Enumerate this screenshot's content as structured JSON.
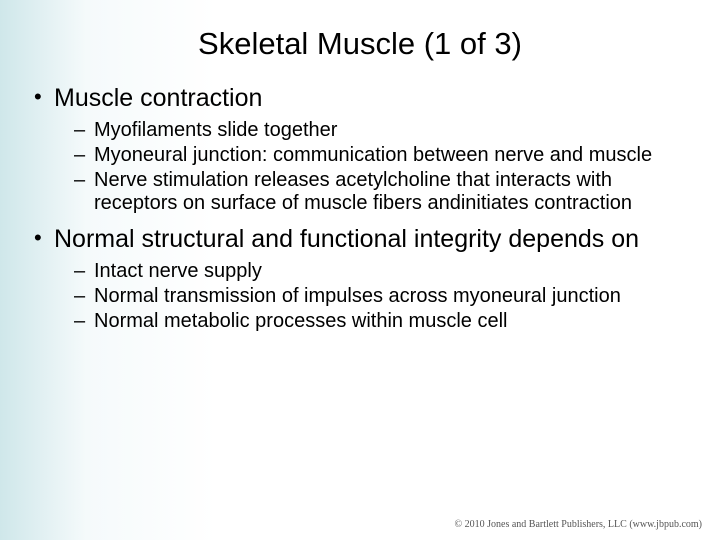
{
  "slide": {
    "title": "Skeletal Muscle (1 of 3)",
    "bullets": [
      {
        "text": "Muscle contraction",
        "sub": [
          "Myofilaments slide together",
          "Myoneural junction: communication between nerve and muscle",
          "Nerve stimulation releases acetylcholine that interacts with receptors on surface of muscle fibers andinitiates contraction"
        ]
      },
      {
        "text": "Normal structural and functional integrity depends on",
        "sub": [
          "Intact nerve supply",
          "Normal transmission of impulses across myoneural junction",
          "Normal metabolic processes within muscle cell"
        ]
      }
    ],
    "footer": "© 2010 Jones and Bartlett Publishers, LLC (www.jbpub.com)"
  },
  "style": {
    "background_gradient_from": "#cfe7ea",
    "background_gradient_to": "#ffffff",
    "title_fontsize": 31,
    "level1_fontsize": 25,
    "level2_fontsize": 20,
    "text_color": "#000000",
    "footer_color": "#555555",
    "footer_fontsize": 10
  }
}
